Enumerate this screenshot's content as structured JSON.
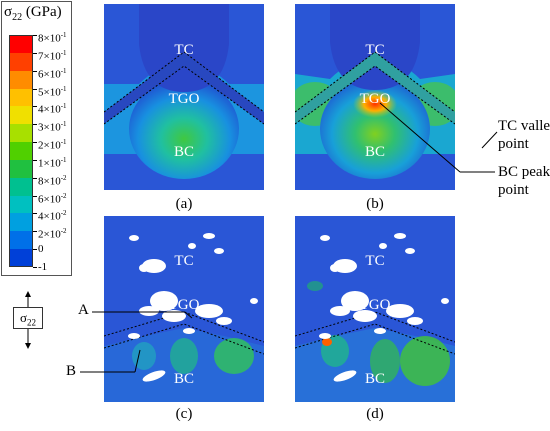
{
  "legend": {
    "title_symbol": "σ",
    "title_subscript": "22",
    "title_unit": "(GPa)",
    "ticks": [
      {
        "mant": "8",
        "exp": "-1"
      },
      {
        "mant": "7",
        "exp": "-1"
      },
      {
        "mant": "6",
        "exp": "-1"
      },
      {
        "mant": "5",
        "exp": "-1"
      },
      {
        "mant": "4",
        "exp": "-1"
      },
      {
        "mant": "3",
        "exp": "-1"
      },
      {
        "mant": "2",
        "exp": "-1"
      },
      {
        "mant": "1",
        "exp": "-1"
      },
      {
        "mant": "8",
        "exp": "-2"
      },
      {
        "mant": "6",
        "exp": "-2"
      },
      {
        "mant": "4",
        "exp": "-2"
      },
      {
        "mant": "2",
        "exp": "-2"
      },
      {
        "mant": "0",
        "exp": ""
      },
      {
        "mant": "-1",
        "exp": ""
      }
    ],
    "times_sign": "×10",
    "colors": [
      "#ff0000",
      "#ff4000",
      "#ff8c00",
      "#ffc000",
      "#f0e000",
      "#a8e000",
      "#50d000",
      "#20c040",
      "#00c090",
      "#00c0c0",
      "#00a0e0",
      "#0070e8",
      "#0040d8",
      "#0000c0"
    ]
  },
  "stress_indicator": {
    "symbol": "σ",
    "subscript": "22"
  },
  "panels": [
    {
      "label": "(a)",
      "tc": "TC",
      "tgo": "TGO",
      "bc": "BC"
    },
    {
      "label": "(b)",
      "tc": "TC",
      "tgo": "TGO",
      "bc": "BC"
    },
    {
      "label": "(c)",
      "tc": "TC",
      "tgo": "TGO",
      "bc": "BC"
    },
    {
      "label": "(d)",
      "tc": "TC",
      "tgo": "TGO",
      "bc": "BC"
    }
  ],
  "annotations": {
    "tc_valley_line1": "TC valley",
    "tc_valley_line2": "point",
    "bc_peak_line1": "BC peak",
    "bc_peak_line2": "point",
    "a": "A",
    "b": "B"
  }
}
